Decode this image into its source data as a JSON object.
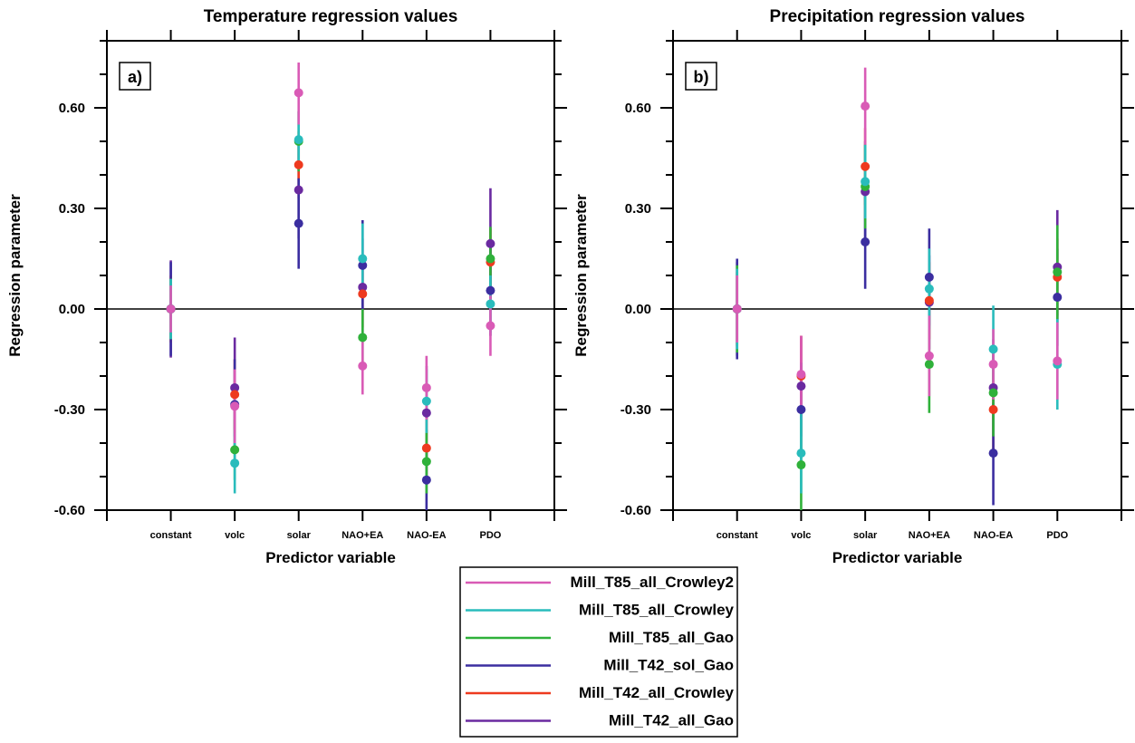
{
  "series": [
    {
      "name": "Mill_T85_all_Crowley2",
      "color": "#d95bb6"
    },
    {
      "name": "Mill_T85_all_Crowley",
      "color": "#29bcbc"
    },
    {
      "name": "Mill_T85_all_Gao",
      "color": "#2fb13a"
    },
    {
      "name": "Mill_T42_sol_Gao",
      "color": "#3b2ea0"
    },
    {
      "name": "Mill_T42_all_Crowley",
      "color": "#ee3a1f"
    },
    {
      "name": "Mill_T42_all_Gao",
      "color": "#6a2aa0"
    }
  ],
  "chart_data": [
    {
      "type": "scatter",
      "panel_label": "a)",
      "title": "Temperature regression values",
      "xlabel": "Predictor variable",
      "ylabel": "Regression parameter",
      "categories": [
        "constant",
        "volc",
        "solar",
        "NAO+EA",
        "NAO-EA",
        "PDO"
      ],
      "ylim": [
        -0.6,
        0.8
      ],
      "yticks": [
        "0.60",
        "0.30",
        "0.00",
        "-0.30",
        "-0.60"
      ],
      "ytick_values": [
        0.6,
        0.3,
        0.0,
        -0.3,
        -0.6
      ],
      "zero_line": true,
      "draw_order": [
        5,
        4,
        3,
        2,
        1,
        0
      ],
      "series": [
        {
          "name": "Mill_T85_all_Crowley2",
          "values": [
            0.0,
            -0.29,
            0.645,
            -0.17,
            -0.235,
            -0.05
          ],
          "lo": [
            -0.07,
            -0.4,
            0.55,
            -0.255,
            -0.33,
            -0.14
          ],
          "hi": [
            0.07,
            -0.18,
            0.735,
            -0.08,
            -0.14,
            0.04
          ]
        },
        {
          "name": "Mill_T85_all_Crowley",
          "values": [
            0.0,
            -0.46,
            0.505,
            0.15,
            -0.275,
            0.015
          ],
          "lo": [
            -0.09,
            -0.55,
            0.42,
            0.04,
            -0.37,
            -0.07
          ],
          "hi": [
            0.09,
            -0.37,
            0.59,
            0.255,
            -0.18,
            0.1
          ]
        },
        {
          "name": "Mill_T85_all_Gao",
          "values": [
            0.0,
            -0.42,
            0.5,
            -0.085,
            -0.455,
            0.15
          ],
          "lo": [
            -0.09,
            -0.51,
            0.41,
            -0.17,
            -0.55,
            0.06
          ],
          "hi": [
            0.09,
            -0.33,
            0.59,
            0.0,
            -0.36,
            0.245
          ]
        },
        {
          "name": "Mill_T42_sol_Gao",
          "values": [
            0.0,
            -0.285,
            0.255,
            0.13,
            -0.51,
            0.055
          ],
          "lo": [
            -0.14,
            -0.42,
            0.12,
            -0.005,
            -0.6,
            -0.08
          ],
          "hi": [
            0.14,
            -0.15,
            0.39,
            0.265,
            -0.42,
            0.19
          ]
        },
        {
          "name": "Mill_T42_all_Crowley",
          "values": [
            0.0,
            -0.255,
            0.43,
            0.045,
            -0.415,
            0.14
          ],
          "lo": [
            -0.1,
            -0.36,
            0.33,
            -0.055,
            -0.51,
            0.04
          ],
          "hi": [
            0.1,
            -0.15,
            0.53,
            0.145,
            -0.32,
            0.24
          ]
        },
        {
          "name": "Mill_T42_all_Gao",
          "values": [
            0.0,
            -0.235,
            0.355,
            0.065,
            -0.31,
            0.195
          ],
          "lo": [
            -0.145,
            -0.38,
            0.21,
            -0.08,
            -0.45,
            0.03
          ],
          "hi": [
            0.145,
            -0.085,
            0.5,
            0.21,
            -0.17,
            0.36
          ]
        }
      ]
    },
    {
      "type": "scatter",
      "panel_label": "b)",
      "title": "Precipitation regression values",
      "xlabel": "Predictor variable",
      "ylabel": "Regression parameter",
      "categories": [
        "constant",
        "volc",
        "solar",
        "NAO+EA",
        "NAO-EA",
        "PDO"
      ],
      "ylim": [
        -0.6,
        0.8
      ],
      "yticks": [
        "0.60",
        "0.30",
        "0.00",
        "-0.30",
        "-0.60"
      ],
      "ytick_values": [
        0.6,
        0.3,
        0.0,
        -0.3,
        -0.6
      ],
      "zero_line": true,
      "draw_order": [
        5,
        4,
        3,
        2,
        1,
        0
      ],
      "series": [
        {
          "name": "Mill_T85_all_Crowley2",
          "values": [
            0.0,
            -0.195,
            0.605,
            -0.14,
            -0.165,
            -0.155
          ],
          "lo": [
            -0.1,
            -0.31,
            0.49,
            -0.26,
            -0.27,
            -0.27
          ],
          "hi": [
            0.1,
            -0.08,
            0.72,
            -0.02,
            -0.06,
            -0.04
          ]
        },
        {
          "name": "Mill_T85_all_Crowley",
          "values": [
            0.0,
            -0.43,
            0.38,
            0.06,
            -0.12,
            -0.165
          ],
          "lo": [
            -0.12,
            -0.55,
            0.27,
            -0.06,
            -0.25,
            -0.3
          ],
          "hi": [
            0.12,
            -0.31,
            0.49,
            0.18,
            0.01,
            -0.03
          ]
        },
        {
          "name": "Mill_T85_all_Gao",
          "values": [
            0.0,
            -0.465,
            0.365,
            -0.165,
            -0.25,
            0.11
          ],
          "lo": [
            -0.13,
            -0.6,
            0.24,
            -0.31,
            -0.38,
            -0.03
          ],
          "hi": [
            0.13,
            -0.33,
            0.49,
            -0.02,
            -0.12,
            0.25
          ]
        },
        {
          "name": "Mill_T42_sol_Gao",
          "values": [
            0.0,
            -0.3,
            0.2,
            0.095,
            -0.43,
            0.035
          ],
          "lo": [
            -0.15,
            -0.44,
            0.06,
            -0.05,
            -0.585,
            -0.11
          ],
          "hi": [
            0.15,
            -0.16,
            0.34,
            0.24,
            -0.28,
            0.18
          ]
        },
        {
          "name": "Mill_T42_all_Crowley",
          "values": [
            0.0,
            -0.2,
            0.425,
            0.025,
            -0.3,
            0.095
          ],
          "lo": [
            -0.11,
            -0.32,
            0.31,
            -0.09,
            -0.42,
            -0.02
          ],
          "hi": [
            0.11,
            -0.08,
            0.54,
            0.14,
            -0.18,
            0.21
          ]
        },
        {
          "name": "Mill_T42_all_Gao",
          "values": [
            0.0,
            -0.23,
            0.35,
            0.02,
            -0.235,
            0.125
          ],
          "lo": [
            -0.14,
            -0.38,
            0.2,
            -0.12,
            -0.38,
            -0.04
          ],
          "hi": [
            0.14,
            -0.08,
            0.5,
            0.16,
            -0.09,
            0.295
          ]
        }
      ]
    }
  ]
}
